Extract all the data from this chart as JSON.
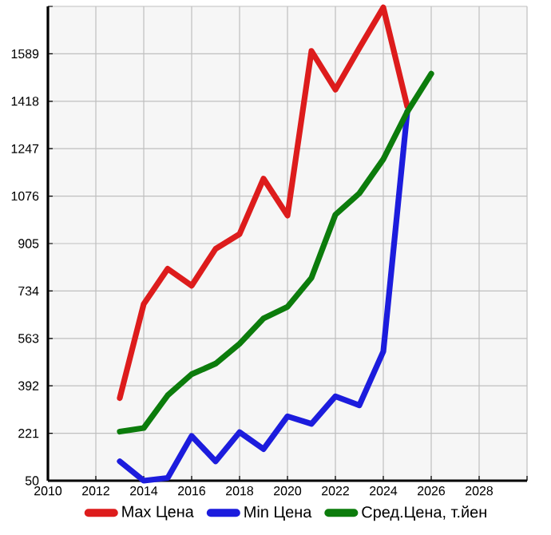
{
  "chart_data": {
    "type": "line",
    "xlim": [
      2010,
      2030
    ],
    "xticks": [
      2010,
      2012,
      2014,
      2016,
      2018,
      2020,
      2022,
      2024,
      2026,
      2028,
      {
        "value": 2030,
        "label": null
      }
    ],
    "ylim": [
      50,
      1760
    ],
    "yticks": [
      50,
      221,
      392,
      563,
      734,
      905,
      1076,
      1247,
      1418,
      1589,
      {
        "value": 1760,
        "label": null
      }
    ],
    "grid": true,
    "legend": "bottom",
    "marker": "none",
    "line_style": "solid",
    "series": [
      {
        "name": "Max Цена",
        "color": "#dd1c1c",
        "x": [
          2013,
          2014,
          2015,
          2016,
          2017,
          2018,
          2019,
          2020,
          2021,
          2022,
          2023,
          2024,
          2025
        ],
        "values": [
          348,
          687,
          814,
          753,
          886,
          939,
          1139,
          1006,
          1599,
          1460,
          1610,
          1756,
          1399
        ]
      },
      {
        "name": "Min Цена",
        "color": "#1c1cdd",
        "x": [
          2013,
          2014,
          2015,
          2016,
          2017,
          2018,
          2019,
          2020,
          2021,
          2022,
          2023,
          2024,
          2025
        ],
        "values": [
          120,
          50,
          60,
          211,
          120,
          225,
          164,
          282,
          255,
          354,
          322,
          516,
          1380
        ]
      },
      {
        "name": "Сред.Цена, т.йен",
        "color": "#0c7c0c",
        "x": [
          2013,
          2014,
          2015,
          2016,
          2017,
          2018,
          2019,
          2020,
          2021,
          2022,
          2023,
          2024,
          2025,
          2026
        ],
        "values": [
          227,
          240,
          358,
          434,
          472,
          544,
          635,
          677,
          781,
          1009,
          1086,
          1209,
          1380,
          1517
        ]
      }
    ]
  }
}
